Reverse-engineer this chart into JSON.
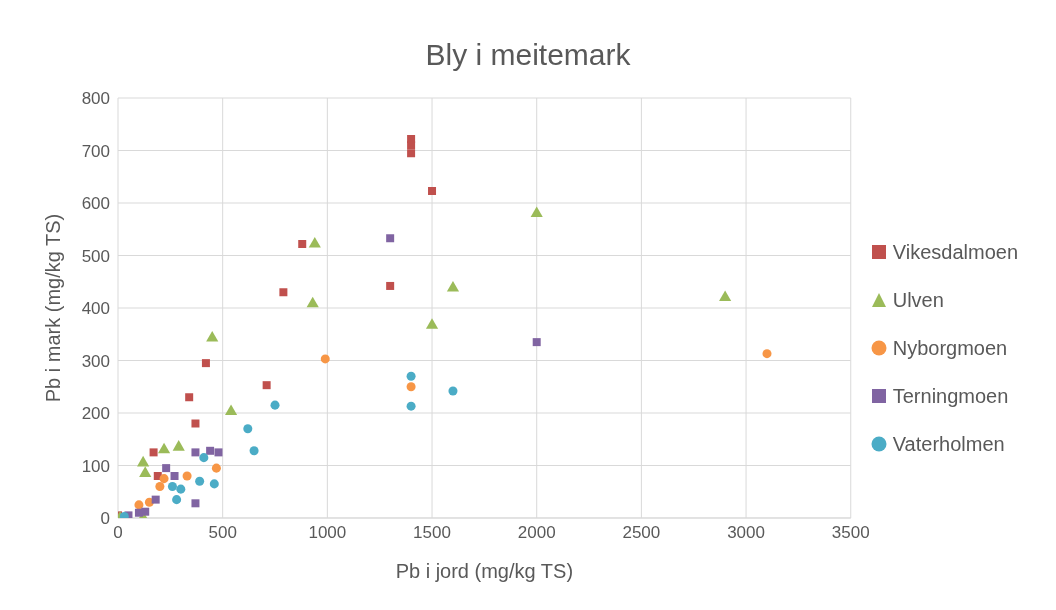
{
  "chart_data": {
    "type": "scatter",
    "title": "Bly i meitemark",
    "xlabel": "Pb i jord (mg/kg TS)",
    "ylabel": "Pb i mark (mg/kg TS)",
    "xlim": [
      0,
      3500
    ],
    "xticks": [
      0,
      500,
      1000,
      1500,
      2000,
      2500,
      3000,
      3500
    ],
    "ylim": [
      0,
      800
    ],
    "yticks": [
      0,
      100,
      200,
      300,
      400,
      500,
      600,
      700,
      800
    ],
    "grid": true,
    "legend": "right",
    "series": [
      {
        "name": "Vikesdalmoen",
        "color": "#c0504d",
        "marker": "square",
        "x": [
          0,
          170,
          190,
          340,
          370,
          420,
          710,
          790,
          880,
          1300,
          1400,
          1400,
          1400,
          1500
        ],
        "values": [
          5,
          125,
          80,
          230,
          180,
          295,
          253,
          430,
          522,
          442,
          710,
          722,
          695,
          623
        ]
      },
      {
        "name": "Ulven",
        "color": "#9bbb59",
        "marker": "triangle",
        "x": [
          10,
          120,
          130,
          120,
          220,
          290,
          450,
          540,
          930,
          940,
          1500,
          1600,
          2000,
          2900
        ],
        "values": [
          0,
          105,
          85,
          0,
          130,
          135,
          343,
          203,
          408,
          522,
          367,
          438,
          580,
          420
        ]
      },
      {
        "name": "Nyborgmoen",
        "color": "#f79646",
        "marker": "circle",
        "x": [
          100,
          150,
          200,
          220,
          330,
          470,
          990,
          1400,
          3100
        ],
        "values": [
          25,
          30,
          60,
          75,
          80,
          95,
          303,
          250,
          313
        ]
      },
      {
        "name": "Terningmoen",
        "color": "#8064a2",
        "marker": "square",
        "x": [
          50,
          100,
          130,
          180,
          230,
          270,
          370,
          370,
          440,
          480,
          1300,
          2000
        ],
        "values": [
          5,
          10,
          12,
          35,
          95,
          80,
          28,
          125,
          128,
          125,
          533,
          335
        ]
      },
      {
        "name": "Vaterholmen",
        "color": "#4bacc6",
        "marker": "circle",
        "x": [
          30,
          260,
          280,
          300,
          390,
          410,
          460,
          620,
          650,
          750,
          1400,
          1400,
          1600
        ],
        "values": [
          3,
          60,
          35,
          55,
          70,
          115,
          65,
          170,
          128,
          215,
          270,
          213,
          242
        ]
      }
    ]
  }
}
